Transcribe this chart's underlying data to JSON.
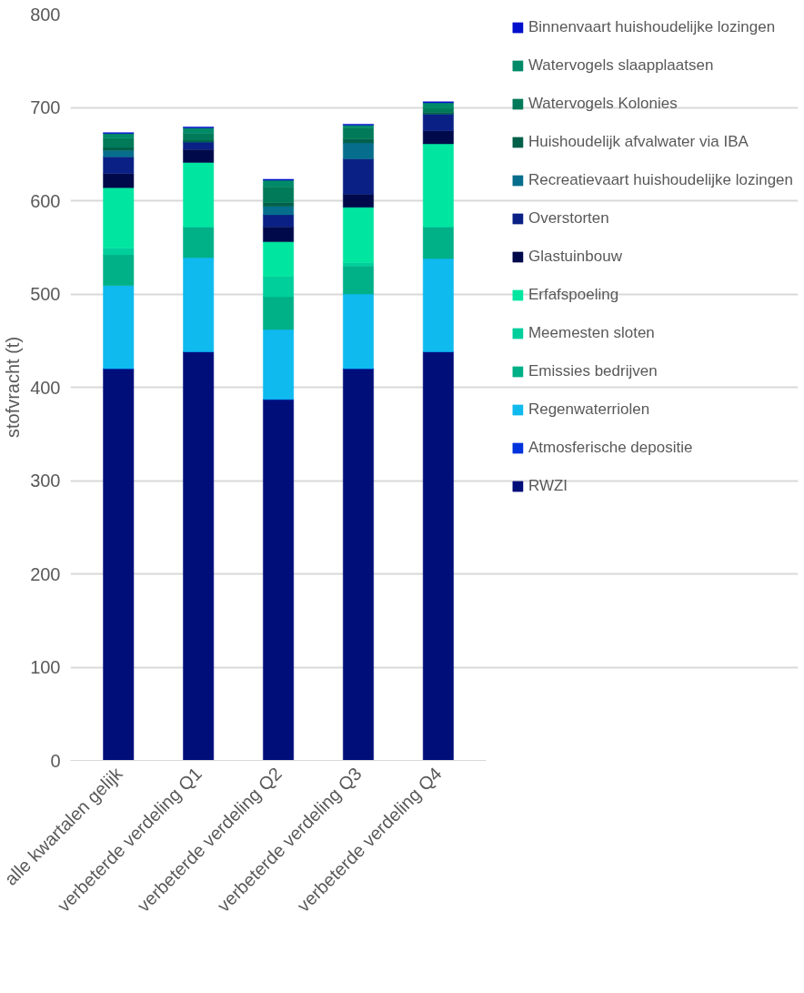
{
  "chart_data": {
    "type": "bar",
    "stacked": true,
    "ylabel": "stofvracht (t)",
    "categories": [
      "alle kwartalen gelijk",
      "verbeterde verdeling Q1",
      "verbeterde verdeling Q2",
      "verbeterde verdeling Q3",
      "verbeterde verdeling Q4"
    ],
    "series": [
      {
        "name": "RWZI",
        "color": "#000e7a",
        "values": [
          420,
          438,
          387,
          420,
          438
        ]
      },
      {
        "name": "Atmosferische depositie",
        "color": "#0033dd",
        "values": [
          0,
          0,
          0,
          0,
          0
        ]
      },
      {
        "name": "Regenwaterriolen",
        "color": "#0fbaef",
        "values": [
          89,
          101,
          75,
          80,
          100
        ]
      },
      {
        "name": "Emissies bedrijven",
        "color": "#00b087",
        "values": [
          33,
          33,
          35,
          30,
          34
        ]
      },
      {
        "name": "Meemesten sloten",
        "color": "#00cf9c",
        "values": [
          7,
          0,
          22,
          4,
          0
        ]
      },
      {
        "name": "Erfafspoeling",
        "color": "#00e6a0",
        "values": [
          65,
          69,
          37,
          59,
          89
        ]
      },
      {
        "name": "Glastuinbouw",
        "color": "#000a4a",
        "values": [
          15,
          14,
          16,
          14,
          14
        ]
      },
      {
        "name": "Overstorten",
        "color": "#0a2085",
        "values": [
          18,
          8,
          13,
          38,
          18
        ]
      },
      {
        "name": "Recreatievaart huishoudelijke lozingen",
        "color": "#066e8c",
        "values": [
          7,
          0,
          9,
          17,
          0
        ]
      },
      {
        "name": "Huishoudelijk afvalwater via IBA",
        "color": "#00604a",
        "values": [
          3,
          2,
          4,
          4,
          2
        ]
      },
      {
        "name": "Watervogels Kolonies",
        "color": "#007a58",
        "values": [
          10,
          7,
          17,
          12,
          4
        ]
      },
      {
        "name": "Watervogels slaapplaatsen",
        "color": "#008a68",
        "values": [
          5,
          6,
          7,
          3,
          6
        ]
      },
      {
        "name": "Binnenvaart huishoudelijke lozingen",
        "color": "#0010cc",
        "values": [
          1,
          1,
          1,
          1,
          1
        ]
      }
    ],
    "ylim": [
      0,
      800
    ],
    "yticks": [
      0,
      100,
      200,
      300,
      400,
      500,
      600,
      700,
      800
    ],
    "grid": "y",
    "legend": "right"
  }
}
